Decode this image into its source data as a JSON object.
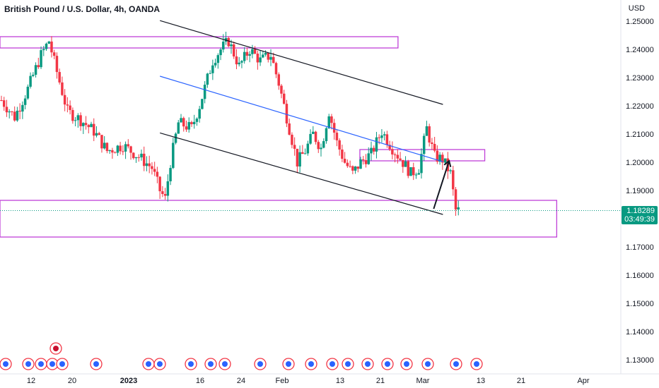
{
  "header": {
    "title": "British Pound / U.S. Dollar, 4h, OANDA",
    "currency": "USD"
  },
  "price_tag": {
    "price": "1.18289",
    "countdown": "03:49:39",
    "color": "#089981"
  },
  "colors": {
    "up": "#089981",
    "down": "#f23645",
    "zone": "#c040d8",
    "channel": "#131722",
    "midline": "#2962ff",
    "axis_text": "#131722"
  },
  "chart_data": {
    "type": "candlestick",
    "title": "British Pound / U.S. Dollar, 4h, OANDA",
    "symbol": "GBPUSD",
    "timeframe": "4h",
    "source": "OANDA",
    "y_label": "USD",
    "ylim": [
      1.125,
      1.2575
    ],
    "y_ticks": [
      "1.25000",
      "1.24000",
      "1.23000",
      "1.22000",
      "1.21000",
      "1.20000",
      "1.19000",
      "1.18000",
      "1.17000",
      "1.16000",
      "1.15000",
      "1.14000",
      "1.13000"
    ],
    "x_ticks": [
      "12",
      "20",
      "2023",
      "16",
      "24",
      "Feb",
      "13",
      "21",
      "Mar",
      "13",
      "21",
      "Apr"
    ],
    "last_price": 1.18289,
    "grid": false,
    "trend_path": [
      [
        0,
        1.222
      ],
      [
        5,
        1.216
      ],
      [
        10,
        1.226
      ],
      [
        15,
        1.238
      ],
      [
        18,
        1.243
      ],
      [
        21,
        1.232
      ],
      [
        25,
        1.218
      ],
      [
        30,
        1.215
      ],
      [
        35,
        1.211
      ],
      [
        40,
        1.204
      ],
      [
        46,
        1.206
      ],
      [
        52,
        1.202
      ],
      [
        57,
        1.198
      ],
      [
        60,
        1.19
      ],
      [
        62,
        1.187
      ],
      [
        64,
        1.2
      ],
      [
        67,
        1.214
      ],
      [
        72,
        1.212
      ],
      [
        75,
        1.22
      ],
      [
        80,
        1.236
      ],
      [
        83,
        1.24
      ],
      [
        86,
        1.243
      ],
      [
        90,
        1.234
      ],
      [
        94,
        1.24
      ],
      [
        98,
        1.236
      ],
      [
        102,
        1.238
      ],
      [
        105,
        1.228
      ],
      [
        109,
        1.212
      ],
      [
        112,
        1.2
      ],
      [
        115,
        1.204
      ],
      [
        118,
        1.21
      ],
      [
        121,
        1.205
      ],
      [
        124,
        1.218
      ],
      [
        127,
        1.207
      ],
      [
        130,
        1.2
      ],
      [
        133,
        1.196
      ],
      [
        136,
        1.2
      ],
      [
        140,
        1.203
      ],
      [
        144,
        1.211
      ],
      [
        148,
        1.205
      ],
      [
        152,
        1.2
      ],
      [
        155,
        1.196
      ],
      [
        158,
        1.198
      ],
      [
        161,
        1.212
      ],
      [
        164,
        1.202
      ],
      [
        167,
        1.201
      ],
      [
        170,
        1.196
      ],
      [
        172,
        1.183
      ],
      [
        173,
        1.1829
      ]
    ],
    "zones": [
      {
        "top": 1.2445,
        "bottom": 1.2405
      },
      {
        "top": 1.2045,
        "bottom": 1.2005
      },
      {
        "top": 1.1865,
        "bottom": 1.1735
      }
    ],
    "channel": {
      "upper": [
        [
          0.26,
          1.2502
        ],
        [
          0.72,
          1.2205
        ]
      ],
      "mid": [
        [
          0.26,
          1.2305
        ],
        [
          0.72,
          1.2002
        ]
      ],
      "lower": [
        [
          0.26,
          1.2104
        ],
        [
          0.72,
          1.1815
        ]
      ]
    },
    "projection": [
      [
        0.705,
        1.1835
      ],
      [
        0.73,
        1.2005
      ]
    ]
  }
}
